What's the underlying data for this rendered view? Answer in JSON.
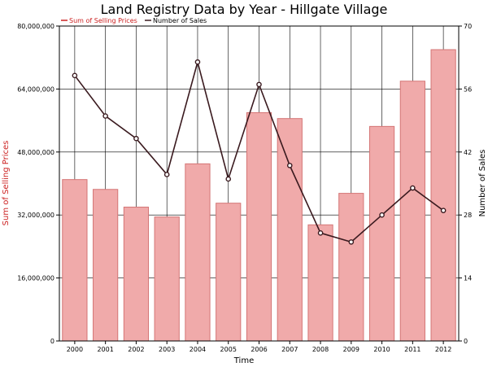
{
  "chart_data": {
    "type": "bar+line",
    "title": "Land Registry Data by Year - Hillgate Village",
    "xlabel": "Time",
    "ylabel_left": "Sum of Selling Prices",
    "ylabel_right": "Number of Sales",
    "categories": [
      "2000",
      "2001",
      "2002",
      "2003",
      "2004",
      "2005",
      "2006",
      "2007",
      "2008",
      "2009",
      "2010",
      "2011",
      "2012"
    ],
    "y_left": {
      "min": 0,
      "max": 80000000,
      "ticks": [
        0,
        16000000,
        32000000,
        48000000,
        64000000,
        80000000
      ],
      "tick_labels": [
        "0",
        "16,000,000",
        "32,000,000",
        "48,000,000",
        "64,000,000",
        "80,000,000"
      ]
    },
    "y_right": {
      "min": 0,
      "max": 70,
      "ticks": [
        0,
        14,
        28,
        42,
        56,
        70
      ],
      "tick_labels": [
        "0",
        "14",
        "28",
        "42",
        "56",
        "70"
      ]
    },
    "grid": true,
    "legend_position": "top-left",
    "series": [
      {
        "name": "Sum of Selling Prices",
        "type": "bar",
        "axis": "left",
        "color": "#f0aaaa",
        "edge_color": "#d47575",
        "values": [
          41000000,
          38500000,
          34000000,
          31500000,
          45000000,
          35000000,
          58000000,
          56500000,
          29500000,
          37500000,
          54500000,
          66000000,
          74000000
        ]
      },
      {
        "name": "Number of Sales",
        "type": "line",
        "axis": "right",
        "color": "#3a1a1f",
        "values": [
          59,
          50,
          45,
          37,
          62,
          36,
          57,
          39,
          24,
          22,
          28,
          34,
          29
        ]
      }
    ],
    "legend_colors": {
      "bars": "#cc2222",
      "line": "#3a1a1f"
    },
    "ylabel_left_color": "#cc2222"
  }
}
